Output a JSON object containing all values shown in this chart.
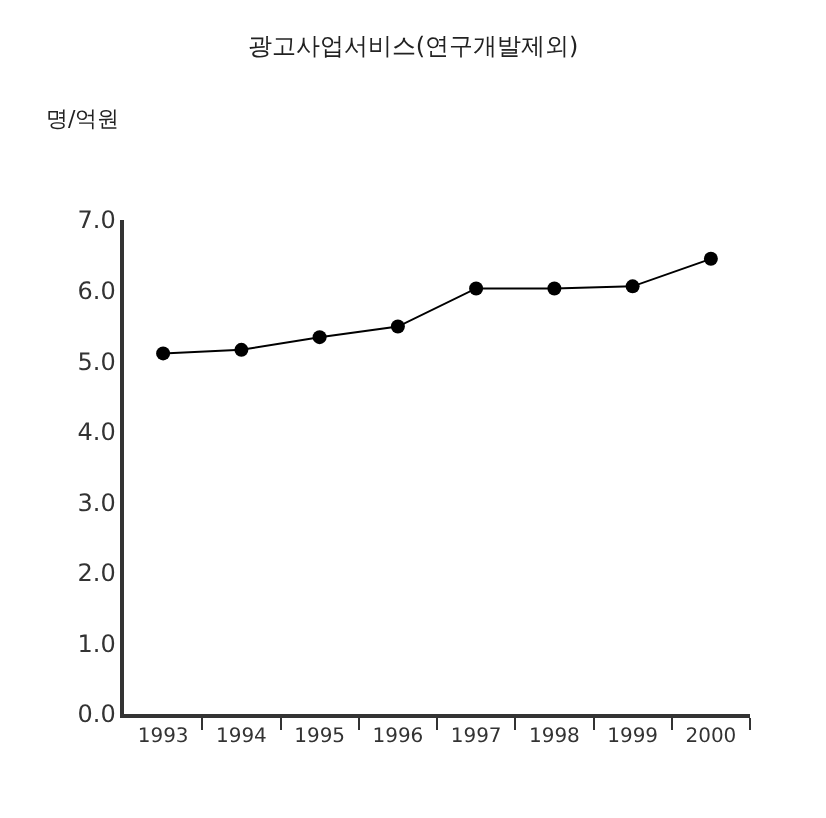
{
  "chart_data": {
    "type": "line",
    "title": "광고사업서비스(연구개발제외)",
    "ylabel": "명/억원",
    "categories": [
      "1993",
      "1994",
      "1995",
      "1996",
      "1997",
      "1998",
      "1999",
      "2000"
    ],
    "series": [
      {
        "color": "#000000",
        "values": [
          5.11,
          5.16,
          5.34,
          5.49,
          6.03,
          6.03,
          6.06,
          6.45
        ]
      }
    ],
    "ylim": [
      0,
      7
    ],
    "yticks": [
      {
        "value": 0,
        "label": "0.0"
      },
      {
        "value": 1,
        "label": "1.0"
      },
      {
        "value": 2,
        "label": "2.0"
      },
      {
        "value": 3,
        "label": "3.0"
      },
      {
        "value": 4,
        "label": "4.0"
      },
      {
        "value": 5,
        "label": "5.0"
      },
      {
        "value": 6,
        "label": "6.0"
      },
      {
        "value": 7,
        "label": "7.0"
      }
    ],
    "legend": false,
    "marker": "circle",
    "line_style": "solid"
  }
}
